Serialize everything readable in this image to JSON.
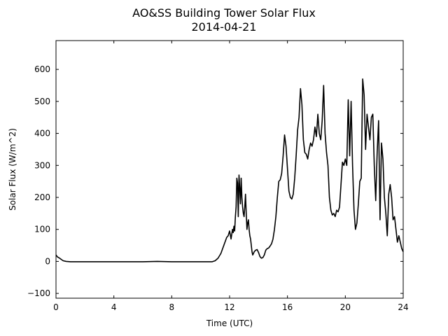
{
  "chart_data": {
    "type": "line",
    "title": "AO&SS Building Tower Solar Flux",
    "subtitle": "2014-04-21",
    "xlabel": "Time (UTC)",
    "ylabel": "Solar Flux (W/m^2)",
    "xlim": [
      0,
      24
    ],
    "ylim": [
      -115,
      690
    ],
    "xticks": [
      0,
      4,
      8,
      12,
      16,
      20,
      24
    ],
    "yticks": [
      -100,
      0,
      100,
      200,
      300,
      400,
      500,
      600
    ],
    "grid": false,
    "legend": "none",
    "line_color": "#000000",
    "series": [
      {
        "x": [
          0,
          0.1,
          0.25,
          0.4,
          0.5,
          0.7,
          1,
          1.5,
          2,
          3,
          4,
          5,
          6,
          7,
          8,
          9,
          10,
          10.8,
          11,
          11.2,
          11.4,
          11.6,
          11.8,
          11.9,
          12,
          12.1,
          12.15,
          12.2,
          12.25,
          12.3,
          12.35,
          12.4,
          12.45,
          12.5,
          12.55,
          12.6,
          12.65,
          12.7,
          12.75,
          12.8,
          12.85,
          12.9,
          12.95,
          13,
          13.05,
          13.1,
          13.15,
          13.2,
          13.25,
          13.3,
          13.35,
          13.4,
          13.45,
          13.5,
          13.55,
          13.6,
          13.65,
          13.7,
          13.8,
          13.9,
          14,
          14.1,
          14.2,
          14.3,
          14.4,
          14.5,
          14.6,
          14.7,
          14.8,
          14.9,
          15,
          15.1,
          15.2,
          15.3,
          15.4,
          15.5,
          15.6,
          15.7,
          15.8,
          15.9,
          16,
          16.1,
          16.2,
          16.3,
          16.4,
          16.5,
          16.6,
          16.7,
          16.8,
          16.9,
          17,
          17.1,
          17.2,
          17.3,
          17.4,
          17.5,
          17.6,
          17.7,
          17.8,
          17.9,
          18,
          18.1,
          18.2,
          18.3,
          18.4,
          18.5,
          18.6,
          18.7,
          18.8,
          18.9,
          19,
          19.1,
          19.2,
          19.3,
          19.4,
          19.5,
          19.6,
          19.7,
          19.8,
          19.9,
          20,
          20.1,
          20.2,
          20.3,
          20.4,
          20.5,
          20.6,
          20.7,
          20.8,
          20.9,
          21,
          21.1,
          21.2,
          21.3,
          21.4,
          21.5,
          21.6,
          21.7,
          21.8,
          21.9,
          22,
          22.1,
          22.2,
          22.3,
          22.4,
          22.5,
          22.6,
          22.7,
          22.8,
          22.9,
          23,
          23.1,
          23.2,
          23.3,
          23.4,
          23.5,
          23.6,
          23.7,
          23.8,
          23.9,
          24
        ],
        "y": [
          20,
          14,
          10,
          5,
          2,
          0,
          -1,
          -1,
          -1,
          -1,
          -1,
          -1,
          -1,
          0,
          -1,
          -1,
          -1,
          -1,
          2,
          10,
          25,
          50,
          75,
          80,
          95,
          70,
          85,
          100,
          90,
          110,
          95,
          140,
          170,
          260,
          245,
          140,
          270,
          230,
          180,
          260,
          200,
          170,
          150,
          140,
          170,
          210,
          150,
          100,
          120,
          130,
          100,
          80,
          70,
          50,
          30,
          20,
          25,
          30,
          35,
          37,
          28,
          15,
          10,
          12,
          20,
          35,
          40,
          42,
          48,
          55,
          70,
          100,
          140,
          200,
          250,
          255,
          275,
          330,
          395,
          360,
          290,
          220,
          200,
          195,
          210,
          260,
          330,
          410,
          450,
          540,
          490,
          380,
          340,
          335,
          320,
          350,
          370,
          360,
          380,
          420,
          390,
          460,
          400,
          380,
          440,
          550,
          400,
          340,
          300,
          200,
          160,
          145,
          150,
          140,
          160,
          155,
          170,
          240,
          310,
          300,
          320,
          300,
          505,
          330,
          500,
          300,
          160,
          100,
          120,
          180,
          250,
          260,
          570,
          520,
          350,
          460,
          420,
          380,
          450,
          460,
          300,
          190,
          340,
          440,
          130,
          370,
          320,
          200,
          150,
          80,
          210,
          240,
          200,
          130,
          140,
          100,
          60,
          80,
          60,
          40,
          30
        ]
      }
    ]
  }
}
